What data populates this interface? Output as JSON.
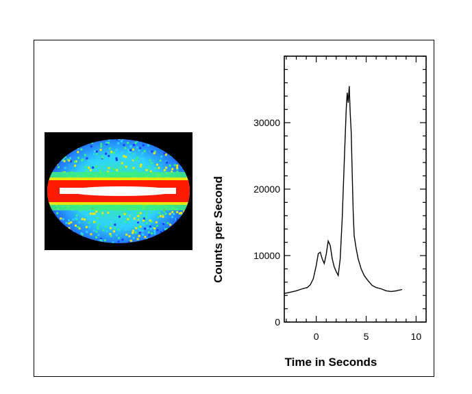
{
  "sky_map": {
    "description_icon": "all-sky-map-image",
    "colors": {
      "background": "#000000",
      "low": "#1a3cff",
      "mid_low": "#2fd3ff",
      "mid": "#3cf07a",
      "mid_high": "#f6e800",
      "high": "#ff1a00",
      "peak": "#ffffff"
    }
  },
  "chart_data": {
    "type": "line",
    "xlabel": "Time in Seconds",
    "ylabel": "Counts per Second",
    "xlim": [
      -3.2,
      11
    ],
    "ylim": [
      0,
      40000
    ],
    "xticks": [
      0,
      5,
      10
    ],
    "xtick_labels": [
      "0",
      "5",
      "10"
    ],
    "yticks": [
      0,
      10000,
      20000,
      30000
    ],
    "ytick_labels": [
      "0",
      "10000",
      "20000",
      "30000"
    ],
    "grid": false,
    "series": [
      {
        "x": [
          -3.2,
          -2.6,
          -2.0,
          -1.4,
          -0.9,
          -0.6,
          -0.3,
          0.0,
          0.2,
          0.4,
          0.6,
          0.8,
          1.0,
          1.2,
          1.4,
          1.6,
          1.8,
          2.0,
          2.2,
          2.4,
          2.6,
          2.8,
          3.0,
          3.1,
          3.2,
          3.3,
          3.4,
          3.5,
          3.6,
          3.7,
          3.8,
          4.0,
          4.2,
          4.5,
          4.8,
          5.2,
          5.6,
          6.0,
          6.5,
          7.0,
          7.5,
          8.0,
          8.6
        ],
        "values": [
          4300,
          4500,
          4700,
          5000,
          5200,
          5600,
          6500,
          8500,
          10300,
          10500,
          9500,
          8800,
          10200,
          12200,
          11500,
          9500,
          8300,
          7600,
          7000,
          9500,
          15500,
          24000,
          32000,
          34500,
          33000,
          35500,
          31500,
          28500,
          22500,
          16500,
          13000,
          11000,
          9500,
          8000,
          7000,
          6200,
          5500,
          5200,
          5000,
          4700,
          4600,
          4700,
          4900
        ]
      }
    ]
  }
}
